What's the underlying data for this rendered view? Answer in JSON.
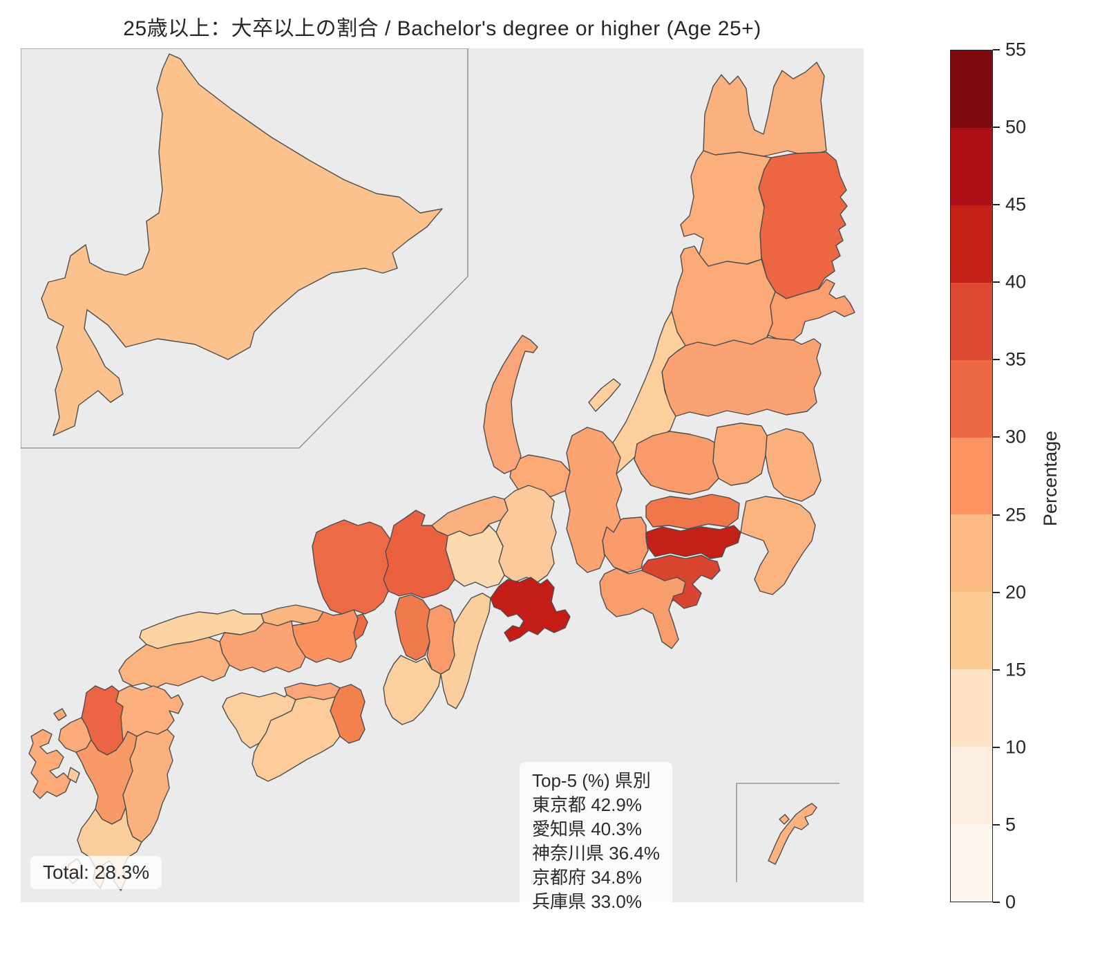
{
  "title": "25歳以上：大卒以上の割合 / Bachelor's degree or higher (Age 25+)",
  "chart_data": {
    "type": "choropleth",
    "subject": "Japan prefectures, share of population age 25+ with bachelor's degree or higher",
    "title": "25歳以上：大卒以上の割合 / Bachelor's degree or higher (Age 25+)",
    "unit": "%",
    "total": {
      "label": "Total: 28.3%",
      "value": 28.3
    },
    "top5": {
      "header": "Top-5 (%) 県別",
      "entries": [
        {
          "name": "東京都",
          "value": "42.9"
        },
        {
          "name": "愛知県",
          "value": "40.3"
        },
        {
          "name": "神奈川県",
          "value": "36.4"
        },
        {
          "name": "京都府",
          "value": "34.8"
        },
        {
          "name": "兵庫県",
          "value": "33.0"
        }
      ]
    },
    "colorbar": {
      "label": "Percentage",
      "min": 0,
      "max": 55,
      "tick_step": 5,
      "ticks": [
        0,
        5,
        10,
        15,
        20,
        25,
        30,
        35,
        40,
        45,
        50,
        55
      ],
      "bin_colors_bottom_to_top": [
        "#fef7ef",
        "#fdefdf",
        "#fde3c3",
        "#fccb96",
        "#fdbb84",
        "#fc9262",
        "#ed6945",
        "#dc4a33",
        "#c52018",
        "#ad1117",
        "#7f0b11"
      ]
    },
    "map_background": "#ebebeb",
    "border_color": "#4d4d4d",
    "inset_border_color": "#858585",
    "region_fills": {
      "hokkaido": "#fbc28d",
      "aomori": "#fbb17e",
      "iwate": "#ec6643",
      "akita": "#fbb07c",
      "miyagi": "#fb9f6f",
      "yamagata": "#fbaa77",
      "fukushima": "#fba273",
      "niigata": "#fccf9d",
      "sado-island": "#fccf9d",
      "tochigi": "#fbab78",
      "ibaraki": "#fbb07d",
      "gunma": "#f89a6a",
      "saitama": "#f0774b",
      "tokyo": "#c32017",
      "chiba": "#fbb37f",
      "kanagawa": "#d84430",
      "yamanashi": "#f89a6a",
      "nagano": "#fba471",
      "shizuoka": "#f89d6c",
      "toyama": "#fbaa76",
      "ishikawa": "#fba678",
      "fukui": "#fbb17f",
      "gifu": "#fbc99a",
      "aichi": "#c41d17",
      "mie": "#fcce9d",
      "shiga": "#fcd9ae",
      "kyoto": "#eb6140",
      "osaka": "#ef7a4d",
      "nara": "#f89a69",
      "wakayama": "#fccf9e",
      "hyogo": "#ec6a45",
      "awaji-island": "#ec6a45",
      "tottori": "#fbb680",
      "shimane": "#fcd4a4",
      "okayama": "#f9915f",
      "hiroshima": "#fba473",
      "yamaguchi": "#fbb37f",
      "kagawa": "#fba679",
      "tokushima": "#f2814e",
      "ehime": "#fccf9e",
      "kochi": "#fccd9b",
      "fukuoka": "#eb6443",
      "saga": "#fbab79",
      "nagasaki": "#fbaa78",
      "nagasaki-islands": "#fbaa78",
      "amakusa-islands": "#fccd9c",
      "oita": "#fbaf7c",
      "kumamoto": "#f89a68",
      "miyazaki": "#fbb17d",
      "kagoshima": "#fccd9c",
      "kagoshima-south": "#fdeedd",
      "okinawa": "#fbb27e",
      "okinawa-small-island": "#fbb27e"
    }
  }
}
